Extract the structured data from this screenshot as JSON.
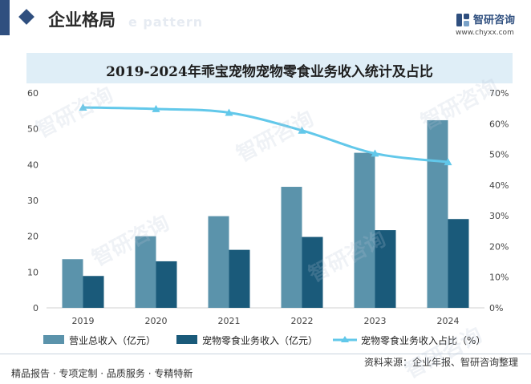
{
  "header": {
    "title": "企业格局",
    "ghost_text": "e pattern",
    "logo_name": "智研咨询",
    "logo_url": "www.chyxx.com"
  },
  "watermark": "智研咨询",
  "colors": {
    "revenue_total": "#5b93ab",
    "pet_snack": "#1a5a7a",
    "share_line": "#62c8ea",
    "title_band": "#dfeef7",
    "brand": "#2f4f7f"
  },
  "chart_data": {
    "type": "bar",
    "title": "2019-2024年乖宝宠物宠物零食业务收入统计及占比",
    "categories": [
      "2019",
      "2020",
      "2021",
      "2022",
      "2023",
      "2024"
    ],
    "series": [
      {
        "name": "营业总收入（亿元）",
        "type": "bar",
        "axis": "left",
        "values": [
          13.6,
          20.0,
          25.6,
          33.8,
          43.3,
          52.4
        ]
      },
      {
        "name": "宠物零食业务收入（亿元）",
        "type": "bar",
        "axis": "left",
        "values": [
          8.9,
          13.0,
          16.2,
          19.8,
          21.7,
          24.8
        ]
      },
      {
        "name": "宠物零食业务收入占比（%）",
        "type": "line",
        "axis": "right",
        "values": [
          65.3,
          64.8,
          63.6,
          57.8,
          50.3,
          47.5
        ]
      }
    ],
    "y_left": {
      "ylim": [
        0,
        60
      ],
      "ticks": [
        "0",
        "10",
        "20",
        "30",
        "40",
        "50",
        "60"
      ]
    },
    "y_right": {
      "ylim": [
        0,
        70
      ],
      "ticks": [
        "0%",
        "10%",
        "20%",
        "30%",
        "40%",
        "50%",
        "60%",
        "70%"
      ]
    },
    "grid": false,
    "legend_position": "bottom"
  },
  "footer": {
    "left": "精品报告 · 专项定制 · 品质服务 · 专精特新",
    "right": "资料来源：企业年报、智研咨询整理"
  }
}
